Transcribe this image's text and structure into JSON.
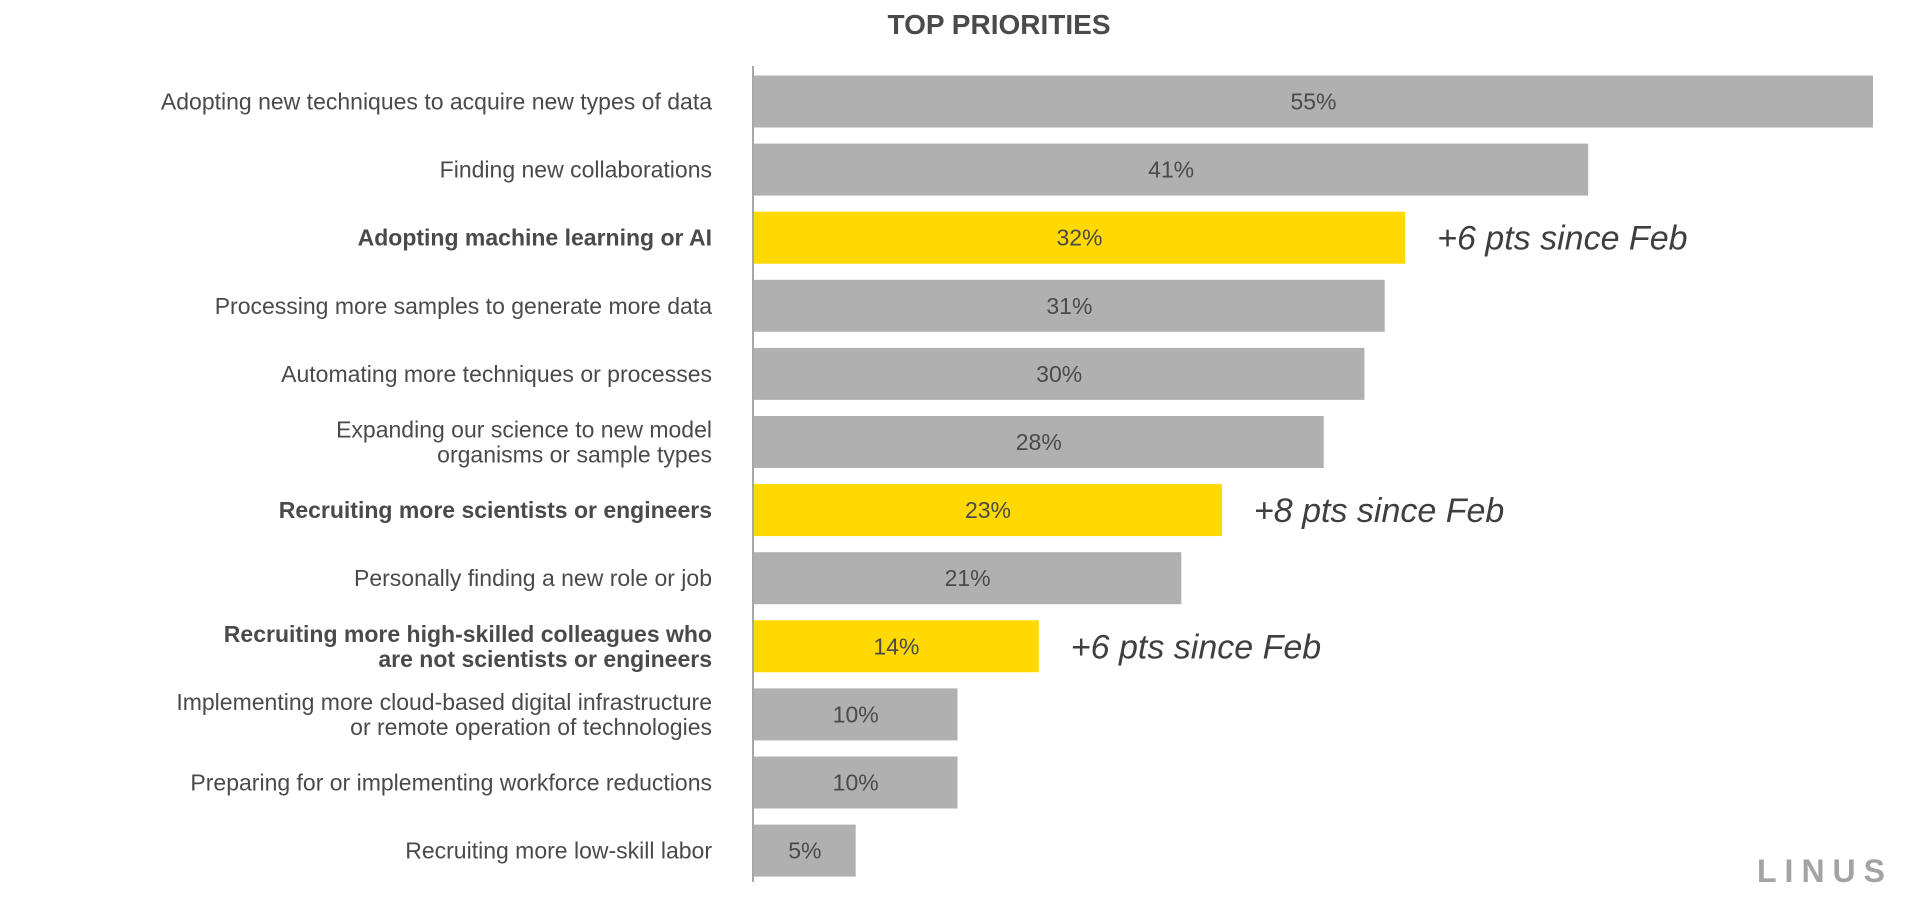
{
  "title": "TOP PRIORITIES",
  "logo": "LINUS",
  "colors": {
    "default_bar": "#b0b0b0",
    "highlight_bar": "#ffd900",
    "axis": "#8a8a8a",
    "text": "#4a4a4a"
  },
  "chart_data": {
    "type": "bar",
    "orientation": "horizontal",
    "title": "TOP PRIORITIES",
    "xlim": [
      0,
      55
    ],
    "grid": false,
    "value_format": "percent",
    "categories": [
      "Adopting new techniques to acquire new types of data",
      "Finding new collaborations",
      "Adopting machine learning or AI",
      "Processing more samples to generate more data",
      "Automating more techniques or processes",
      "Expanding our science to new model organisms or sample types",
      "Recruiting more scientists or engineers",
      "Personally finding a new role or job",
      "Recruiting more high-skilled colleagues who are not scientists or engineers",
      "Implementing more cloud-based digital infrastructure or remote operation of technologies",
      "Preparing for or implementing workforce reductions",
      "Recruiting more low-skill labor"
    ],
    "values": [
      55,
      41,
      32,
      31,
      30,
      28,
      23,
      21,
      14,
      10,
      10,
      5
    ],
    "bars": [
      {
        "label_lines": [
          "Adopting new techniques to acquire new types of data"
        ],
        "value": 55,
        "value_label": "55%",
        "highlight": false,
        "annotation": ""
      },
      {
        "label_lines": [
          "Finding new collaborations"
        ],
        "value": 41,
        "value_label": "41%",
        "highlight": false,
        "annotation": ""
      },
      {
        "label_lines": [
          "Adopting machine learning or AI"
        ],
        "value": 32,
        "value_label": "32%",
        "highlight": true,
        "annotation": "+6 pts since Feb"
      },
      {
        "label_lines": [
          "Processing more samples to generate more data"
        ],
        "value": 31,
        "value_label": "31%",
        "highlight": false,
        "annotation": ""
      },
      {
        "label_lines": [
          "Automating more techniques or processes"
        ],
        "value": 30,
        "value_label": "30%",
        "highlight": false,
        "annotation": ""
      },
      {
        "label_lines": [
          "Expanding our science to new model",
          "organisms or sample types"
        ],
        "value": 28,
        "value_label": "28%",
        "highlight": false,
        "annotation": ""
      },
      {
        "label_lines": [
          "Recruiting more scientists or engineers"
        ],
        "value": 23,
        "value_label": "23%",
        "highlight": true,
        "annotation": "+8 pts since Feb"
      },
      {
        "label_lines": [
          "Personally finding a new role or job"
        ],
        "value": 21,
        "value_label": "21%",
        "highlight": false,
        "annotation": ""
      },
      {
        "label_lines": [
          "Recruiting more high-skilled colleagues who",
          "are not scientists or engineers"
        ],
        "value": 14,
        "value_label": "14%",
        "highlight": true,
        "annotation": "+6 pts since Feb"
      },
      {
        "label_lines": [
          "Implementing more cloud-based digital infrastructure",
          "or remote operation of technologies"
        ],
        "value": 10,
        "value_label": "10%",
        "highlight": false,
        "annotation": ""
      },
      {
        "label_lines": [
          "Preparing for or implementing workforce reductions"
        ],
        "value": 10,
        "value_label": "10%",
        "highlight": false,
        "annotation": ""
      },
      {
        "label_lines": [
          "Recruiting more low-skill labor"
        ],
        "value": 5,
        "value_label": "5%",
        "highlight": false,
        "annotation": ""
      }
    ]
  }
}
